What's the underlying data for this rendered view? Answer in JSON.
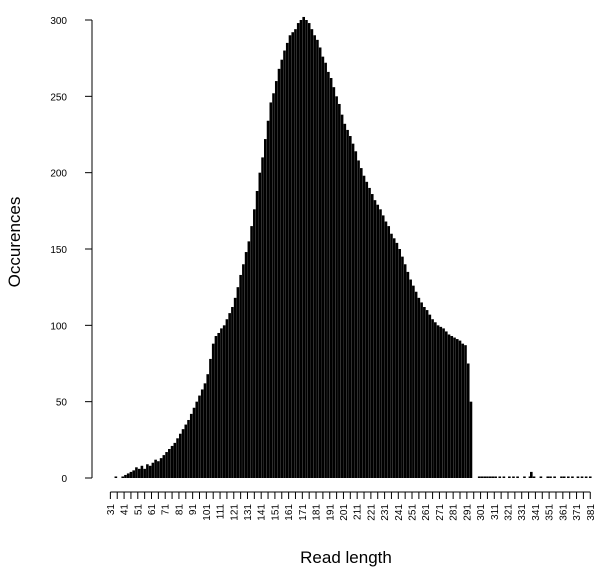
{
  "chart_data": {
    "type": "bar",
    "title": "",
    "xlabel": "Read length",
    "ylabel": "Occurences",
    "xlim": [
      30,
      383
    ],
    "ylim": [
      0,
      300
    ],
    "y_ticks": [
      0,
      50,
      100,
      150,
      200,
      250,
      300
    ],
    "x_ticks": [
      31,
      41,
      51,
      61,
      71,
      81,
      91,
      101,
      111,
      121,
      131,
      141,
      151,
      161,
      171,
      181,
      191,
      201,
      211,
      221,
      231,
      241,
      251,
      261,
      271,
      281,
      291,
      301,
      311,
      321,
      331,
      341,
      351,
      361,
      371,
      381
    ],
    "x_minor_step": 5,
    "grid": false,
    "bar_color": "#000000",
    "x": [
      35,
      40,
      42,
      44,
      46,
      48,
      50,
      52,
      54,
      56,
      58,
      60,
      62,
      64,
      66,
      68,
      70,
      72,
      74,
      76,
      78,
      80,
      82,
      84,
      86,
      88,
      90,
      92,
      94,
      96,
      98,
      100,
      102,
      104,
      106,
      108,
      110,
      112,
      114,
      116,
      118,
      120,
      122,
      124,
      126,
      128,
      130,
      132,
      134,
      136,
      138,
      140,
      142,
      144,
      146,
      148,
      150,
      152,
      154,
      156,
      158,
      160,
      162,
      164,
      166,
      168,
      170,
      172,
      174,
      176,
      178,
      180,
      182,
      184,
      186,
      188,
      190,
      192,
      194,
      196,
      198,
      200,
      202,
      204,
      206,
      208,
      210,
      212,
      214,
      216,
      218,
      220,
      222,
      224,
      226,
      228,
      230,
      232,
      234,
      236,
      238,
      240,
      242,
      244,
      246,
      248,
      250,
      252,
      254,
      256,
      258,
      260,
      262,
      264,
      266,
      268,
      270,
      272,
      274,
      276,
      278,
      280,
      282,
      284,
      286,
      288,
      290,
      292,
      294,
      300,
      302,
      304,
      306,
      308,
      310,
      312,
      315,
      318,
      322,
      325,
      328,
      333,
      337,
      338,
      340,
      345,
      350,
      352,
      355,
      360,
      362,
      365,
      368,
      372,
      375,
      378,
      381
    ],
    "values": [
      1,
      1,
      2,
      3,
      4,
      5,
      7,
      6,
      8,
      6,
      9,
      8,
      10,
      12,
      11,
      13,
      15,
      17,
      19,
      21,
      23,
      26,
      29,
      32,
      35,
      38,
      42,
      46,
      50,
      54,
      58,
      62,
      68,
      78,
      88,
      93,
      95,
      98,
      100,
      104,
      108,
      112,
      118,
      125,
      133,
      140,
      148,
      155,
      165,
      176,
      188,
      200,
      210,
      222,
      234,
      246,
      252,
      260,
      268,
      274,
      280,
      285,
      290,
      292,
      294,
      298,
      300,
      302,
      300,
      298,
      294,
      290,
      287,
      282,
      276,
      272,
      266,
      262,
      256,
      250,
      245,
      238,
      232,
      228,
      224,
      219,
      214,
      208,
      203,
      198,
      194,
      190,
      186,
      182,
      179,
      176,
      172,
      168,
      165,
      160,
      157,
      154,
      150,
      145,
      140,
      135,
      130,
      126,
      122,
      118,
      115,
      112,
      110,
      107,
      104,
      102,
      100,
      99,
      98,
      96,
      94,
      93,
      92,
      91,
      90,
      88,
      87,
      75,
      50,
      1,
      1,
      1,
      1,
      1,
      1,
      1,
      1,
      1,
      1,
      1,
      1,
      1,
      1,
      4,
      1,
      1,
      1,
      1,
      1,
      1,
      1,
      1,
      1,
      1,
      1,
      1,
      1
    ]
  }
}
